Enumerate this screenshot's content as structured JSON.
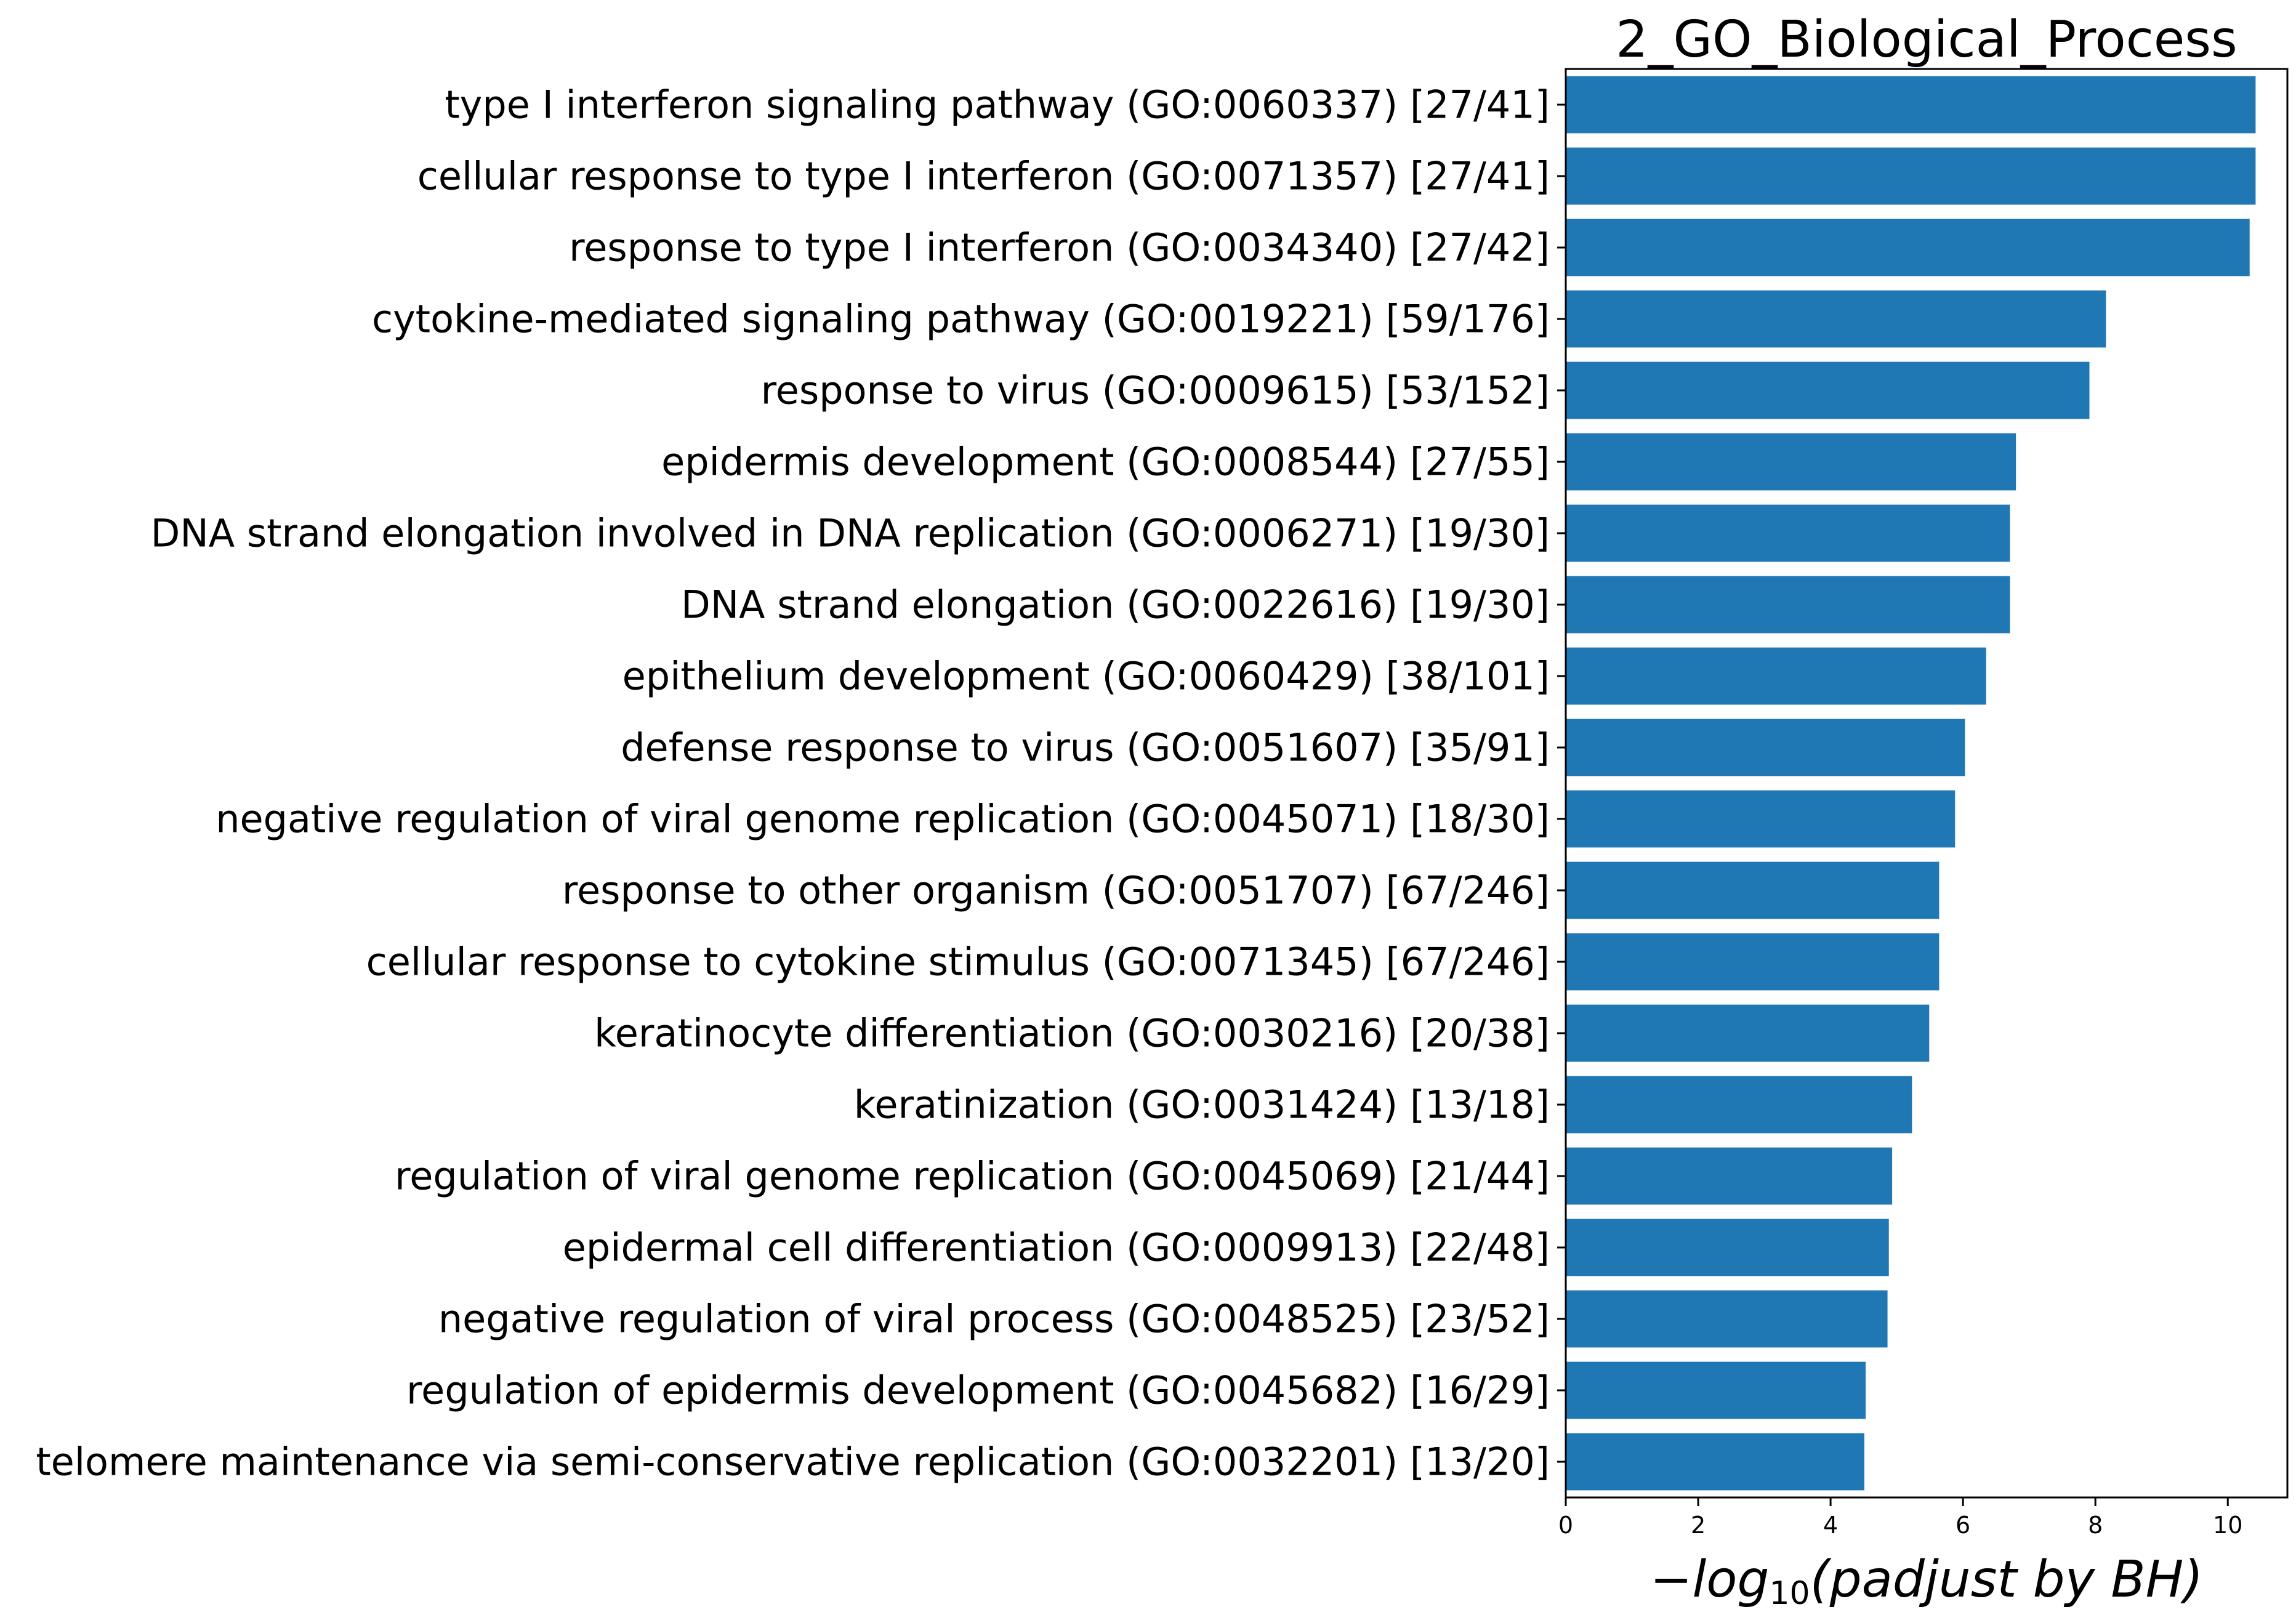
{
  "chart_data": {
    "type": "bar",
    "orientation": "horizontal",
    "title": "2_GO_Biological_Process",
    "xlabel": {
      "prefix": "−log",
      "subscript": "10",
      "suffix": "(padjust by BH)"
    },
    "ylabel": "",
    "xlim": [
      0,
      10.9
    ],
    "xticks": [
      0,
      2,
      4,
      6,
      8,
      10
    ],
    "grid": false,
    "legend": "none",
    "bar_color": "#1f77b4",
    "categories": [
      "type I interferon signaling pathway (GO:0060337) [27/41]",
      "cellular response to type I interferon (GO:0071357) [27/41]",
      "response to type I interferon (GO:0034340) [27/42]",
      "cytokine-mediated signaling pathway (GO:0019221) [59/176]",
      "response to virus (GO:0009615) [53/152]",
      "epidermis development (GO:0008544) [27/55]",
      "DNA strand elongation involved in DNA replication (GO:0006271) [19/30]",
      "DNA strand elongation (GO:0022616) [19/30]",
      "epithelium development (GO:0060429) [38/101]",
      "defense response to virus (GO:0051607) [35/91]",
      "negative regulation of viral genome replication (GO:0045071) [18/30]",
      "response to other organism (GO:0051707) [67/246]",
      "cellular response to cytokine stimulus (GO:0071345) [67/246]",
      "keratinocyte differentiation (GO:0030216) [20/38]",
      "keratinization (GO:0031424) [13/18]",
      "regulation of viral genome replication (GO:0045069) [21/44]",
      "epidermal cell differentiation (GO:0009913) [22/48]",
      "negative regulation of viral process (GO:0048525) [23/52]",
      "regulation of epidermis development (GO:0045682) [16/29]",
      "telomere maintenance via semi-conservative replication (GO:0032201) [13/20]"
    ],
    "values": [
      10.42,
      10.42,
      10.33,
      8.16,
      7.91,
      6.8,
      6.71,
      6.71,
      6.35,
      6.03,
      5.88,
      5.64,
      5.64,
      5.49,
      5.23,
      4.93,
      4.88,
      4.86,
      4.53,
      4.51
    ]
  }
}
